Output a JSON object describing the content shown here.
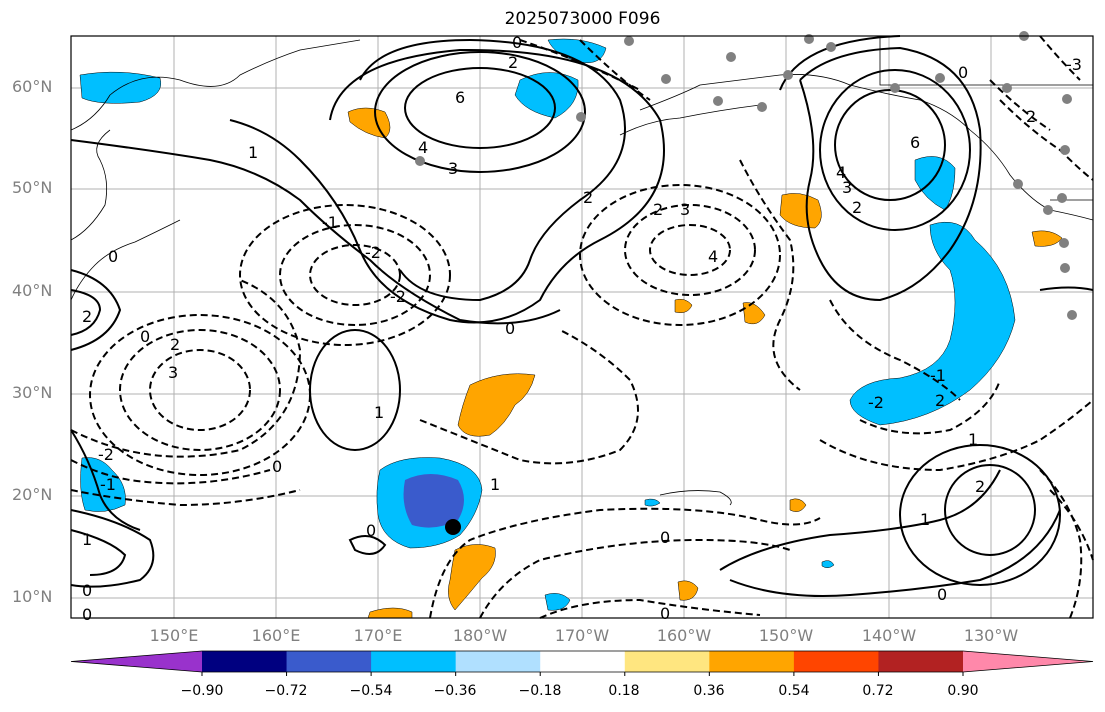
{
  "title": "2025073000 F096",
  "lat_labels": [
    "60°N",
    "50°N",
    "40°N",
    "30°N",
    "20°N",
    "10°N"
  ],
  "lon_labels": [
    "150°E",
    "160°E",
    "170°E",
    "180°W",
    "170°W",
    "160°W",
    "150°W",
    "140°W",
    "130°W"
  ],
  "colorbar": {
    "ticks": [
      "−0.90",
      "−0.72",
      "−0.54",
      "−0.36",
      "−0.18",
      "0.18",
      "0.36",
      "0.54",
      "0.72",
      "0.90"
    ],
    "colors": [
      "#9932cc",
      "#000080",
      "#3a5bcc",
      "#00bfff",
      "#b0e0ff",
      "#ffffff",
      "#ffe680",
      "#ffa500",
      "#ff4500",
      "#b22222",
      "#ff88aa"
    ]
  },
  "contour_labels": [
    "0",
    "2",
    "6",
    "4",
    "3",
    "2",
    "2",
    "3",
    "4",
    "6",
    "4",
    "3",
    "2",
    "0",
    "-3",
    "2",
    "-1",
    "-2",
    "-2",
    "0",
    "0",
    "2",
    "3",
    "-2",
    "1",
    "-1",
    "1",
    "0",
    "0",
    "1",
    "0",
    "-1",
    "-2",
    "2",
    "1",
    "1",
    "0",
    "0",
    "0",
    "0",
    "0",
    "2",
    "1",
    "2"
  ],
  "colors": {
    "negative_shading": "#00bfff",
    "strong_negative": "#3a5bcc",
    "positive_shading": "#ffa500",
    "station_dot": "#808080"
  }
}
